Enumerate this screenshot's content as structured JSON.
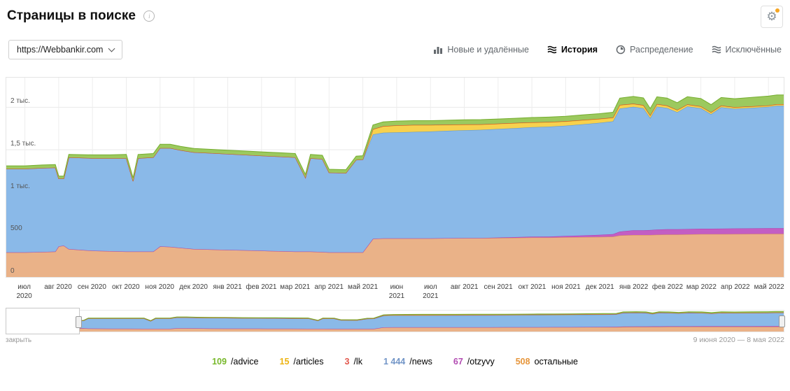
{
  "header": {
    "title": "Страницы в поиске"
  },
  "toolbar": {
    "site_selector": {
      "value": "https://Webbankir.com"
    },
    "tabs": [
      {
        "label": "Новые и удалённые",
        "active": false
      },
      {
        "label": "История",
        "active": true
      },
      {
        "label": "Распределение",
        "active": false
      },
      {
        "label": "Исключённые",
        "active": false
      }
    ]
  },
  "footer": {
    "close_label": "закрыть",
    "date_range": "9 июня 2020 — 8 мая 2022"
  },
  "legend": {
    "items": [
      {
        "value": "109",
        "label": "/advice",
        "color": "#77b82a"
      },
      {
        "value": "15",
        "label": "/articles",
        "color": "#edb413"
      },
      {
        "value": "3",
        "label": "/lk",
        "color": "#e2574c"
      },
      {
        "value": "1 444",
        "label": "/news",
        "color": "#7295c7"
      },
      {
        "value": "67",
        "label": "/otzyvy",
        "color": "#b24cb2"
      },
      {
        "value": "508",
        "label": "остальные",
        "color": "#e6953a"
      }
    ]
  },
  "chart_data": {
    "type": "area",
    "stacked": true,
    "title": "Страницы в поиске — История",
    "ylim": [
      0,
      2350
    ],
    "ymax": 2350,
    "grid": true,
    "y_ticks": [
      {
        "v": 0,
        "label": "0"
      },
      {
        "v": 500,
        "label": "500"
      },
      {
        "v": 1000,
        "label": "1 тыс."
      },
      {
        "v": 1500,
        "label": "1,5 тыс."
      },
      {
        "v": 2000,
        "label": "2 тыс."
      }
    ],
    "x_labels": [
      "июл\n2020",
      "авг 2020",
      "сен 2020",
      "окт 2020",
      "ноя 2020",
      "дек 2020",
      "янв 2021",
      "фев 2021",
      "мар 2021",
      "апр 2021",
      "май 2021",
      "июн\n2021",
      "июл\n2021",
      "авг 2021",
      "сен 2021",
      "окт 2021",
      "ноя 2021",
      "дек 2021",
      "янв 2022",
      "фев 2022",
      "мар 2022",
      "апр 2022",
      "май 2022"
    ],
    "x_months": [
      0,
      0.5,
      0.9,
      1.0,
      1.15,
      1.3,
      2.0,
      2.5,
      3.0,
      3.2,
      3.35,
      3.8,
      4.0,
      4.3,
      4.6,
      5.0,
      5.5,
      6.0,
      6.5,
      7.0,
      7.5,
      8.0,
      8.3,
      8.45,
      8.8,
      9.0,
      9.5,
      9.8,
      10.0,
      10.3,
      10.6,
      11.0,
      11.5,
      12.0,
      12.5,
      13.0,
      13.5,
      14.0,
      14.5,
      15.0,
      15.5,
      16.0,
      16.5,
      17.0,
      17.4,
      17.6,
      18.0,
      18.3,
      18.5,
      18.7,
      19.0,
      19.3,
      19.6,
      20.0,
      20.3,
      20.6,
      21.0,
      21.5,
      22.0,
      22.25
    ],
    "series": [
      {
        "name": "остальные",
        "key": "ostalnye",
        "fill": "#eab288",
        "stroke": "#d89057",
        "values": [
          290,
          295,
          300,
          360,
          370,
          330,
          310,
          305,
          300,
          300,
          300,
          300,
          360,
          355,
          345,
          330,
          325,
          320,
          315,
          310,
          305,
          300,
          300,
          300,
          295,
          290,
          290,
          290,
          290,
          450,
          455,
          455,
          455,
          455,
          458,
          460,
          460,
          460,
          462,
          465,
          465,
          468,
          470,
          472,
          475,
          490,
          495,
          495,
          495,
          498,
          500,
          500,
          502,
          505,
          505,
          505,
          506,
          507,
          508,
          508
        ]
      },
      {
        "name": "/otzyvy",
        "key": "otzyvy",
        "fill": "#c35ec3",
        "stroke": "#aa3fab",
        "values": [
          0,
          0,
          0,
          0,
          0,
          0,
          0,
          0,
          0,
          0,
          0,
          0,
          0,
          0,
          0,
          0,
          0,
          0,
          0,
          0,
          0,
          0,
          0,
          0,
          0,
          0,
          0,
          0,
          0,
          0,
          0,
          0,
          0,
          0,
          0,
          0,
          0,
          5,
          8,
          10,
          12,
          15,
          20,
          25,
          30,
          45,
          55,
          55,
          58,
          60,
          62,
          62,
          63,
          64,
          64,
          65,
          66,
          66,
          67,
          67
        ]
      },
      {
        "name": "/news",
        "key": "news",
        "fill": "#8ab9e8",
        "stroke": "#5793ce",
        "values": [
          985,
          990,
          990,
          800,
          790,
          1080,
          1090,
          1095,
          1100,
          830,
          1100,
          1110,
          1160,
          1165,
          1150,
          1140,
          1135,
          1130,
          1125,
          1120,
          1115,
          1110,
          870,
          1100,
          1095,
          940,
          935,
          1090,
          1095,
          1230,
          1245,
          1250,
          1255,
          1260,
          1265,
          1270,
          1275,
          1280,
          1285,
          1290,
          1295,
          1300,
          1310,
          1320,
          1330,
          1450,
          1455,
          1440,
          1320,
          1450,
          1430,
          1380,
          1445,
          1420,
          1350,
          1430,
          1410,
          1420,
          1430,
          1444
        ]
      },
      {
        "name": "/articles",
        "key": "articles",
        "fill": "#f7d14e",
        "stroke": "#e3b71c",
        "values": [
          0,
          0,
          0,
          0,
          0,
          0,
          0,
          0,
          0,
          0,
          0,
          0,
          0,
          0,
          0,
          0,
          0,
          0,
          0,
          0,
          0,
          0,
          0,
          0,
          0,
          0,
          0,
          0,
          0,
          60,
          75,
          80,
          80,
          75,
          70,
          65,
          62,
          60,
          58,
          55,
          52,
          50,
          48,
          45,
          42,
          40,
          35,
          33,
          30,
          28,
          26,
          25,
          22,
          20,
          20,
          18,
          17,
          16,
          15,
          15
        ]
      },
      {
        "name": "/lk",
        "key": "lk",
        "fill": "#e2574c",
        "stroke": "#d23c30",
        "values": [
          0,
          0,
          0,
          0,
          0,
          0,
          0,
          0,
          0,
          0,
          0,
          0,
          0,
          0,
          0,
          0,
          0,
          0,
          0,
          0,
          0,
          0,
          0,
          0,
          0,
          0,
          0,
          0,
          0,
          3,
          3,
          3,
          3,
          3,
          3,
          3,
          3,
          3,
          3,
          3,
          3,
          3,
          3,
          3,
          3,
          3,
          3,
          3,
          3,
          3,
          3,
          3,
          3,
          3,
          3,
          3,
          3,
          3,
          3,
          3
        ]
      },
      {
        "name": "/advice",
        "key": "advice",
        "fill": "#9cc95e",
        "stroke": "#74ad2e",
        "values": [
          35,
          35,
          35,
          30,
          30,
          35,
          40,
          40,
          45,
          40,
          45,
          45,
          45,
          45,
          45,
          45,
          45,
          45,
          45,
          45,
          45,
          45,
          40,
          45,
          45,
          40,
          40,
          45,
          45,
          50,
          50,
          50,
          50,
          50,
          52,
          55,
          55,
          55,
          55,
          57,
          58,
          58,
          60,
          60,
          62,
          80,
          85,
          85,
          80,
          85,
          88,
          85,
          90,
          92,
          90,
          95,
          100,
          105,
          109,
          109
        ]
      }
    ],
    "current_totals": {
      "advice": 109,
      "articles": 15,
      "lk": 3,
      "news": 1444,
      "otzyvy": 67,
      "ostalnye": 508
    }
  }
}
